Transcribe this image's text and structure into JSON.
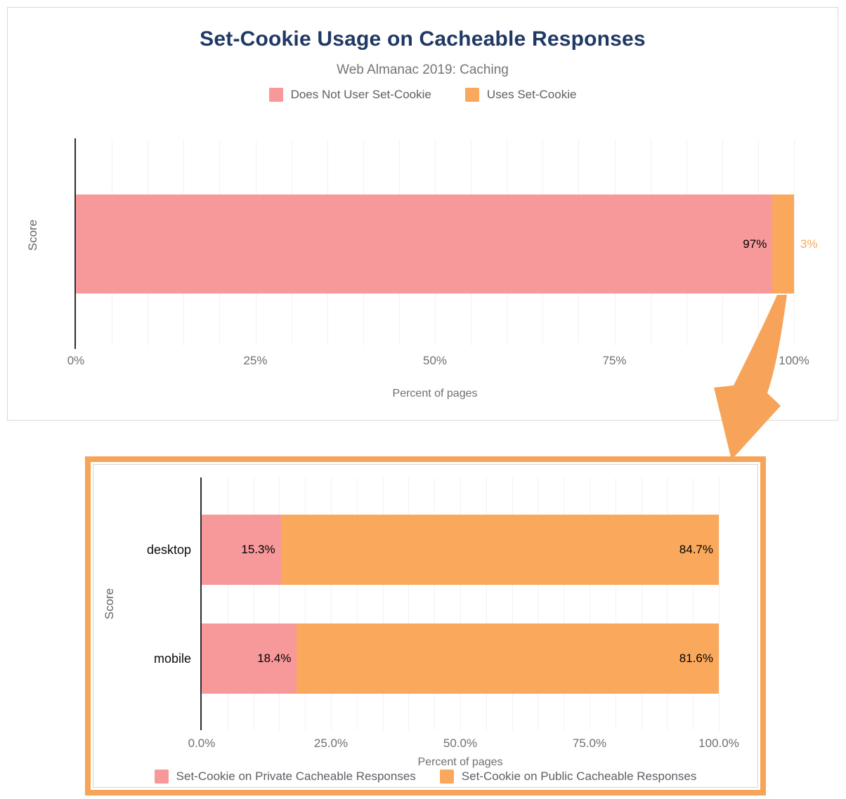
{
  "colors": {
    "pink": "#F7989B",
    "orange": "#F9A85C",
    "title_navy": "#1F3864",
    "frame_and_arrow_orange": "#F7A45A",
    "muted_text": "#757575"
  },
  "annotation": {
    "arrow_color": "#F7A45A"
  },
  "chart_data": [
    {
      "type": "bar",
      "orientation": "horizontal",
      "stacked": true,
      "title": "Set-Cookie Usage on Cacheable Responses",
      "subtitle": "Web Almanac 2019: Caching",
      "categories": [
        "Score"
      ],
      "series": [
        {
          "name": "Does Not User Set-Cookie",
          "color": "#F7989B",
          "values": [
            97
          ],
          "labels": [
            "97%"
          ]
        },
        {
          "name": "Uses Set-Cookie",
          "color": "#F9A85C",
          "values": [
            3
          ],
          "labels": [
            "3%"
          ]
        }
      ],
      "xlabel": "Percent of pages",
      "ylabel": "Score",
      "xlim": [
        0,
        100
      ],
      "xticks": [
        "0%",
        "25%",
        "50%",
        "75%",
        "100%"
      ],
      "grid": "vertical gridlines every 5%",
      "legend_position": "top"
    },
    {
      "type": "bar",
      "orientation": "horizontal",
      "stacked": true,
      "title": "",
      "categories": [
        "desktop",
        "mobile"
      ],
      "series": [
        {
          "name": "Set-Cookie on Private Cacheable Responses",
          "color": "#F7989B",
          "values": [
            15.3,
            18.4
          ],
          "labels": [
            "15.3%",
            "18.4%"
          ]
        },
        {
          "name": "Set-Cookie on Public Cacheable Responses",
          "color": "#F9A85C",
          "values": [
            84.7,
            81.6
          ],
          "labels": [
            "84.7%",
            "81.6%"
          ]
        }
      ],
      "xlabel": "Percent of pages",
      "ylabel": "Score",
      "xlim": [
        0,
        100
      ],
      "xticks": [
        "0.0%",
        "25.0%",
        "50.0%",
        "75.0%",
        "100.0%"
      ],
      "grid": "vertical gridlines every 5%",
      "legend_position": "bottom"
    }
  ]
}
